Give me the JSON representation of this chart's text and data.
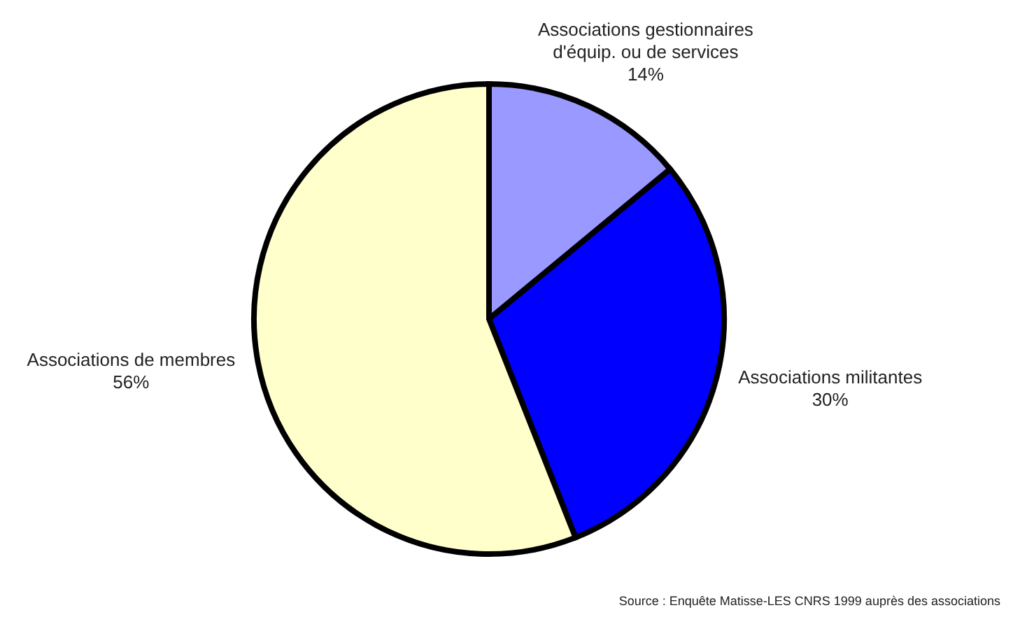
{
  "chart_data": {
    "type": "pie",
    "categories": [
      "Associations gestionnaires d'équip. ou de services",
      "Associations militantes",
      "Associations de membres"
    ],
    "values": [
      14,
      30,
      56
    ],
    "colors": [
      "#9999ff",
      "#0000ff",
      "#ffffcc"
    ],
    "value_labels": [
      "14%",
      "30%",
      "56%"
    ],
    "legend": false,
    "annotations": [
      "Source : Enquête Matisse-LES CNRS 1999 auprès des associations"
    ]
  }
}
